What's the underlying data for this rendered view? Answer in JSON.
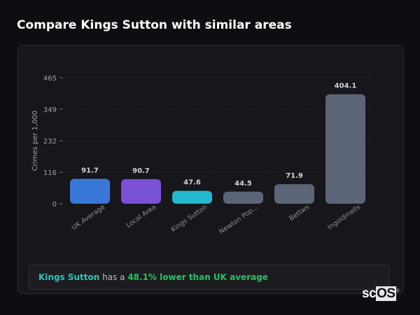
{
  "title": "Compare Kings Sutton with similar areas",
  "chart_data": {
    "type": "bar",
    "title": "",
    "ylabel": "Crimes per 1,000",
    "xlabel": "",
    "ylim": [
      0,
      465
    ],
    "yticks": [
      0,
      116,
      232,
      349,
      465
    ],
    "grid": true,
    "categories": [
      "UK Average",
      "Local Area",
      "Kings Sutton",
      "Newton Pop...",
      "Bettws",
      "Ingoldmells"
    ],
    "values": [
      91.7,
      90.7,
      47.6,
      44.5,
      71.9,
      404.1
    ],
    "value_labels": [
      "91.7",
      "90.7",
      "47.6",
      "44.5",
      "71.9",
      "404.1"
    ],
    "colors": [
      "#3a78d8",
      "#7b52d6",
      "#22b8cf",
      "#5b6577",
      "#5b6577",
      "#5b6577"
    ]
  },
  "summary": {
    "area": "Kings Sutton",
    "middle": " has a ",
    "comparison": "48.1% lower than UK average"
  },
  "logo": {
    "text_a": "sc",
    "text_b": "OS",
    "mark": "®"
  }
}
